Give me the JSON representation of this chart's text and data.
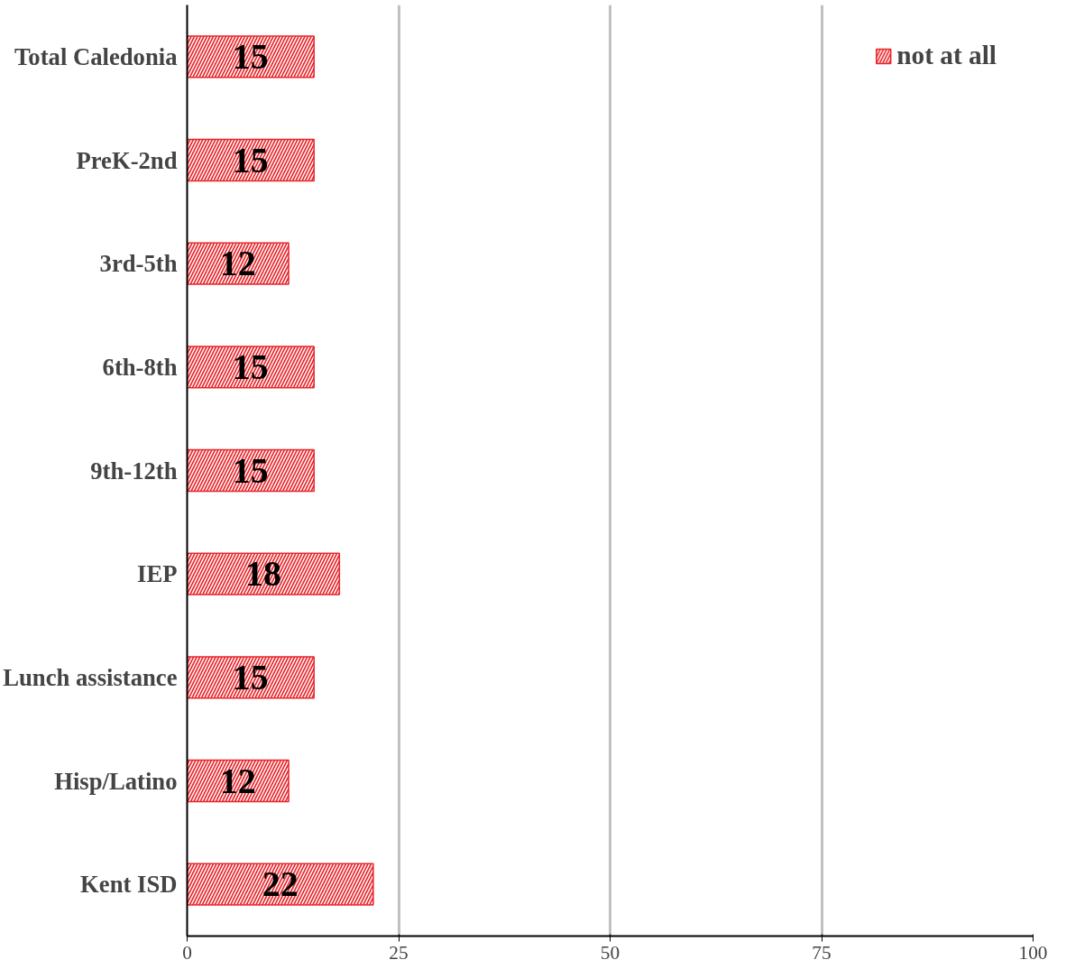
{
  "chart_data": {
    "type": "bar",
    "orientation": "horizontal",
    "categories": [
      "Total Caledonia",
      "PreK-2nd",
      "3rd-5th",
      "6th-8th",
      "9th-12th",
      "IEP",
      "Lunch assistance",
      "Hisp/Latino",
      "Kent ISD"
    ],
    "series": [
      {
        "name": "not at all",
        "color": "#e8262b",
        "values": [
          15,
          15,
          12,
          15,
          15,
          18,
          15,
          12,
          22
        ]
      }
    ],
    "xlim": [
      0,
      100
    ],
    "xticks": [
      0,
      25,
      50,
      75,
      100
    ],
    "grid": "x",
    "legend": "top right",
    "data_labels": true
  }
}
